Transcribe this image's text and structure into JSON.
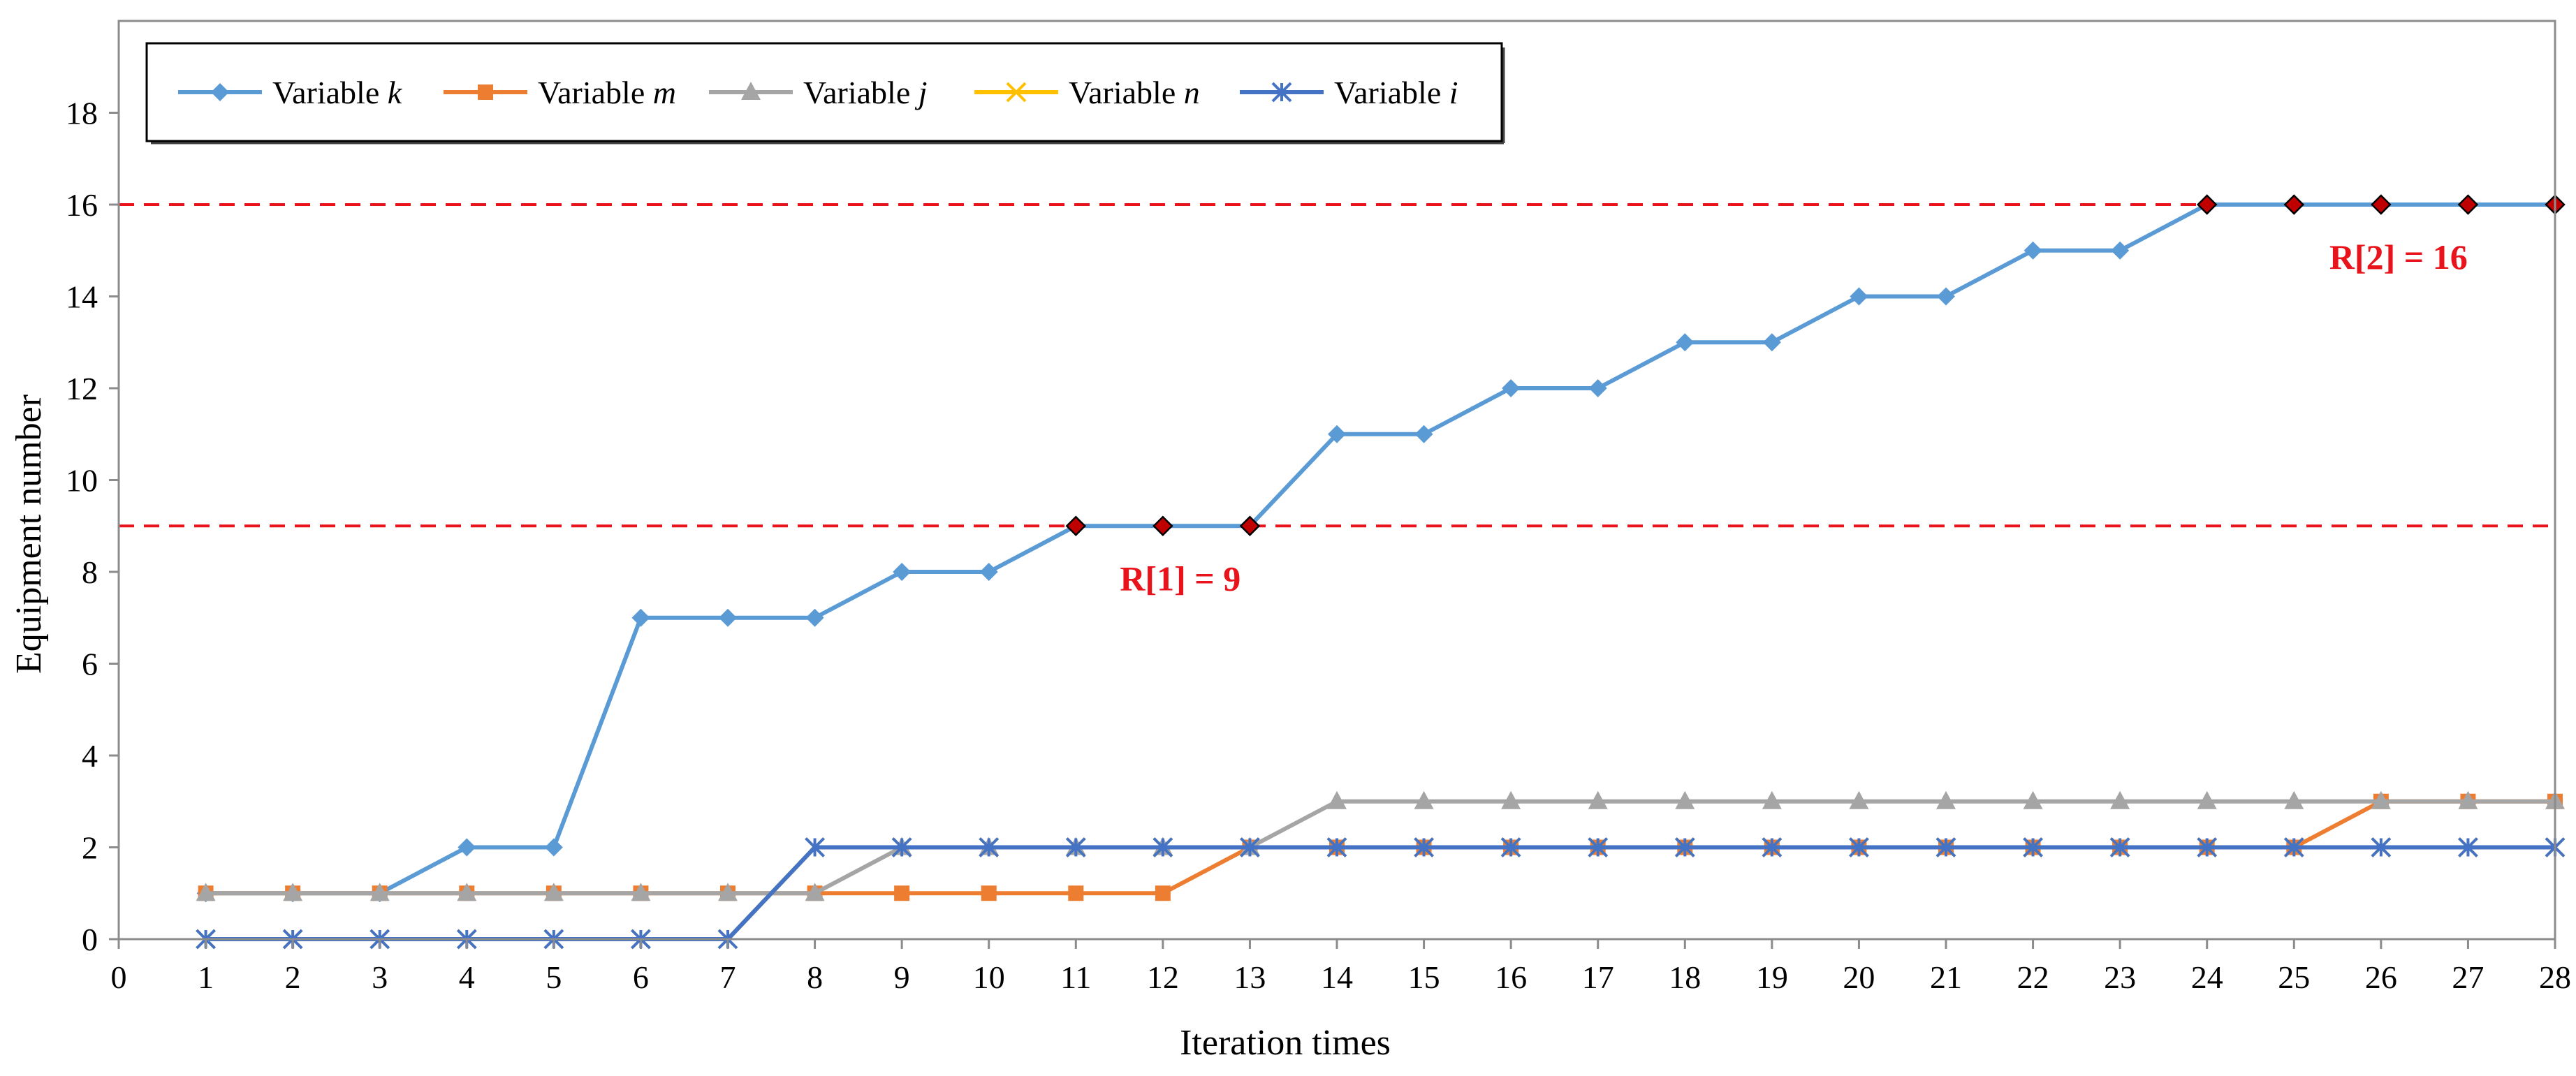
{
  "chart_data": {
    "type": "line",
    "xlabel": "Iteration times",
    "ylabel": "Equipment number",
    "xlim": [
      0,
      28
    ],
    "ylim": [
      0,
      20
    ],
    "x_ticks": [
      0,
      1,
      2,
      3,
      4,
      5,
      6,
      7,
      8,
      9,
      10,
      11,
      12,
      13,
      14,
      15,
      16,
      17,
      18,
      19,
      20,
      21,
      22,
      23,
      24,
      25,
      26,
      27,
      28
    ],
    "y_ticks": [
      0,
      2,
      4,
      6,
      8,
      10,
      12,
      14,
      16,
      18
    ],
    "grid": false,
    "legend_position": "top-left",
    "x": [
      1,
      2,
      3,
      4,
      5,
      6,
      7,
      8,
      9,
      10,
      11,
      12,
      13,
      14,
      15,
      16,
      17,
      18,
      19,
      20,
      21,
      22,
      23,
      24,
      25,
      26,
      27,
      28
    ],
    "series": [
      {
        "name_prefix": "Variable ",
        "name_var": "k",
        "color": "#5b9bd5",
        "marker": "diamond",
        "values": [
          1,
          1,
          1,
          2,
          2,
          7,
          7,
          7,
          8,
          8,
          9,
          9,
          9,
          11,
          11,
          12,
          12,
          13,
          13,
          14,
          14,
          15,
          15,
          16,
          16,
          16,
          16,
          16
        ]
      },
      {
        "name_prefix": "Variable ",
        "name_var": "m",
        "color": "#ed7d31",
        "marker": "square",
        "values": [
          1,
          1,
          1,
          1,
          1,
          1,
          1,
          1,
          1,
          1,
          1,
          1,
          2,
          2,
          2,
          2,
          2,
          2,
          2,
          2,
          2,
          2,
          2,
          2,
          2,
          3,
          3,
          3
        ]
      },
      {
        "name_prefix": "Variable ",
        "name_var": "j",
        "color": "#a5a5a5",
        "marker": "triangle",
        "values": [
          1,
          1,
          1,
          1,
          1,
          1,
          1,
          1,
          2,
          2,
          2,
          2,
          2,
          3,
          3,
          3,
          3,
          3,
          3,
          3,
          3,
          3,
          3,
          3,
          3,
          3,
          3,
          3
        ]
      },
      {
        "name_prefix": "Variable ",
        "name_var": "n",
        "color": "#ffc000",
        "marker": "x",
        "values": [
          0,
          0,
          0,
          0,
          0,
          0,
          0,
          2,
          2,
          2,
          2,
          2,
          2,
          2,
          2,
          2,
          2,
          2,
          2,
          2,
          2,
          2,
          2,
          2,
          2,
          2,
          2,
          2
        ]
      },
      {
        "name_prefix": "Variable ",
        "name_var": "i",
        "color": "#4472c4",
        "marker": "star",
        "values": [
          0,
          0,
          0,
          0,
          0,
          0,
          0,
          2,
          2,
          2,
          2,
          2,
          2,
          2,
          2,
          2,
          2,
          2,
          2,
          2,
          2,
          2,
          2,
          2,
          2,
          2,
          2,
          2
        ]
      }
    ],
    "reference_lines": [
      {
        "y": 9,
        "color": "#e8131b",
        "style": "dashed"
      },
      {
        "y": 16,
        "color": "#e8131b",
        "style": "dashed"
      }
    ],
    "highlight_points": [
      {
        "x": 11,
        "y": 9
      },
      {
        "x": 12,
        "y": 9
      },
      {
        "x": 13,
        "y": 9
      },
      {
        "x": 24,
        "y": 16
      },
      {
        "x": 25,
        "y": 16
      },
      {
        "x": 26,
        "y": 16
      },
      {
        "x": 27,
        "y": 16
      },
      {
        "x": 28,
        "y": 16
      }
    ],
    "highlight_color": "#c00000",
    "annotations": [
      {
        "text": "R[1] = 9",
        "x": 12.2,
        "y": 7.6
      },
      {
        "text": "R[2] = 16",
        "x": 26.2,
        "y": 14.6
      }
    ]
  }
}
